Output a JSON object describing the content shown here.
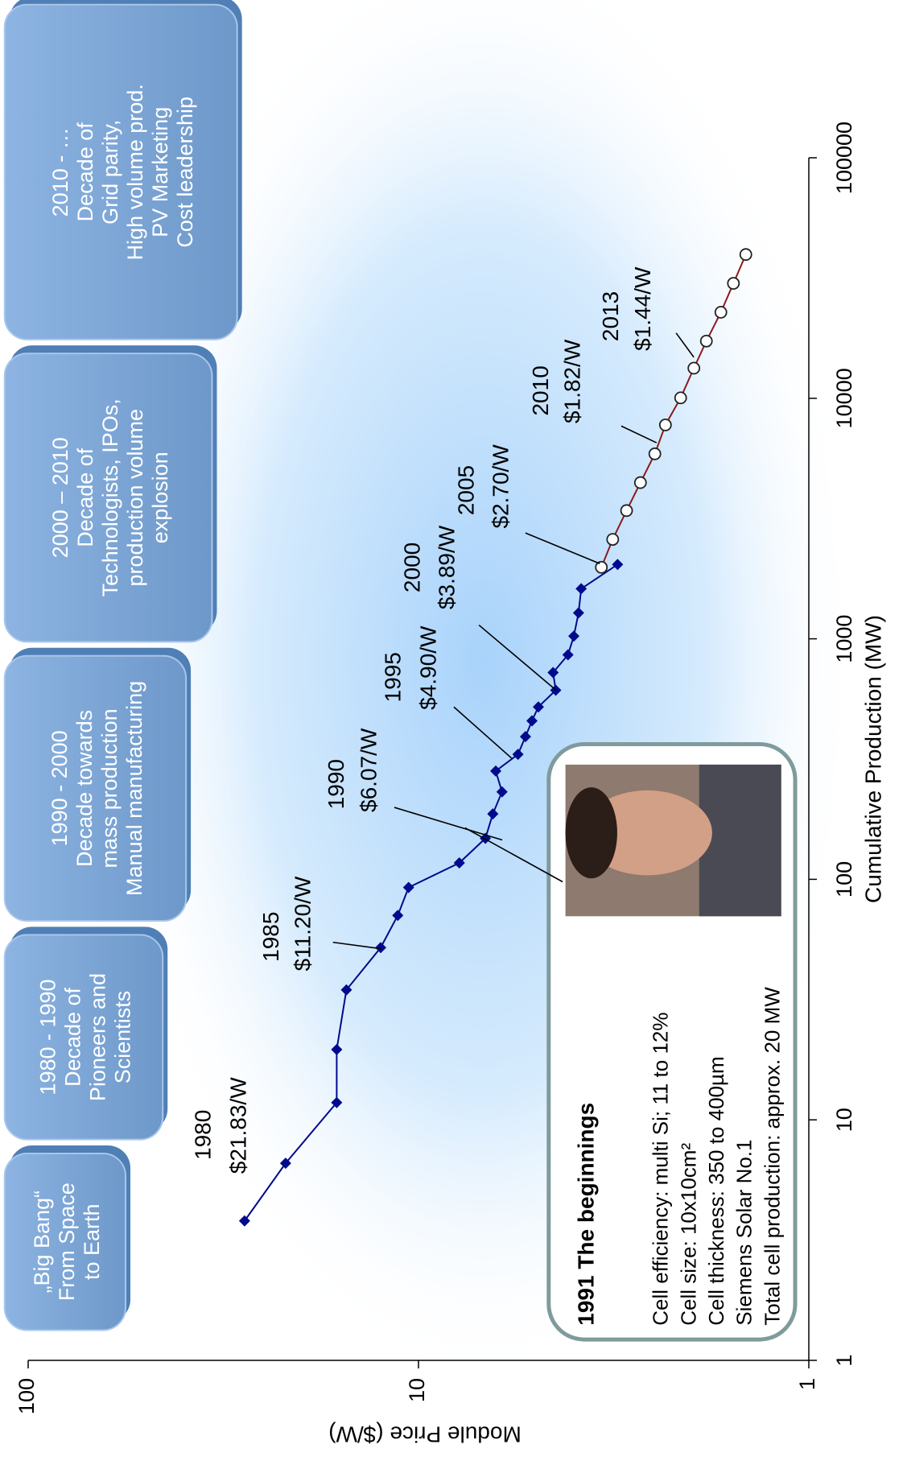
{
  "chart_data": {
    "type": "line",
    "x_label": "Cumulative Production (MW)",
    "y_label": "Module Price ($/W)",
    "xlim": [
      1,
      100000
    ],
    "xticks": [
      1,
      10,
      100,
      1000,
      10000,
      100000
    ],
    "ylim": [
      1,
      100
    ],
    "yticks": [
      1,
      10,
      100
    ],
    "log_x": true,
    "log_y": true,
    "series": [
      {
        "color": "#000a8c",
        "marker": "diamond",
        "x": [
          3.8,
          6.6,
          11.8,
          19.6,
          34.7,
          52,
          70.8,
          92.5,
          117,
          148,
          187,
          231,
          282,
          331,
          392,
          456,
          521,
          611,
          724,
          858,
          1026,
          1282,
          1615,
          2037
        ],
        "values": [
          27.9,
          21.9,
          16.2,
          16.2,
          15.3,
          12.5,
          11.3,
          10.6,
          7.86,
          6.74,
          6.45,
          6.11,
          6.34,
          5.56,
          5.32,
          5.12,
          4.93,
          4.45,
          4.52,
          4.14,
          4.0,
          3.89,
          3.83,
          3.09
        ]
      },
      {
        "color": "#8b1a1a",
        "marker": "circle",
        "x": [
          1983,
          2590,
          3413,
          4460,
          5875,
          7750,
          10040,
          13340,
          17290,
          22790,
          30050,
          39600
        ],
        "values": [
          3.4,
          3.18,
          2.93,
          2.7,
          2.48,
          2.33,
          2.13,
          1.97,
          1.83,
          1.68,
          1.56,
          1.45
        ]
      }
    ],
    "annotations": [
      {
        "year": "1980",
        "price": "$21.83/W"
      },
      {
        "year": "1985",
        "price": "$11.20/W"
      },
      {
        "year": "1990",
        "price": "$6.07/W"
      },
      {
        "year": "1995",
        "price": "$4.90/W"
      },
      {
        "year": "2000",
        "price": "$3.89/W"
      },
      {
        "year": "2005",
        "price": "$2.70/W"
      },
      {
        "year": "2010",
        "price": "$1.82/W"
      },
      {
        "year": "2013",
        "price": "$1.44/W"
      }
    ],
    "eras": [
      [
        "„Big Bang“",
        "From Space",
        "to Earth"
      ],
      [
        "1980 - 1990",
        "Decade of",
        "Pioneers and",
        "Scientists"
      ],
      [
        "1990 - 2000",
        "Decade towards",
        "mass production",
        "Manual manufacturing"
      ],
      [
        "2000 – 2010",
        "Decade of",
        "Technologists, IPOs,",
        "production volume",
        "explosion"
      ],
      [
        "2010 - …",
        "Decade of",
        "Grid parity,",
        "High volume prod.",
        "PV Marketing",
        "Cost leadership"
      ]
    ],
    "info_box": {
      "title": "1991 The beginnings",
      "lines": [
        "Cell efficiency: multi Si; 11 to 12%",
        "Cell size: 10x10cm²",
        "Cell thickness: 350 to 400µm",
        "Siemens Solar No.1",
        "Total cell production: approx. 20 MW"
      ]
    }
  }
}
